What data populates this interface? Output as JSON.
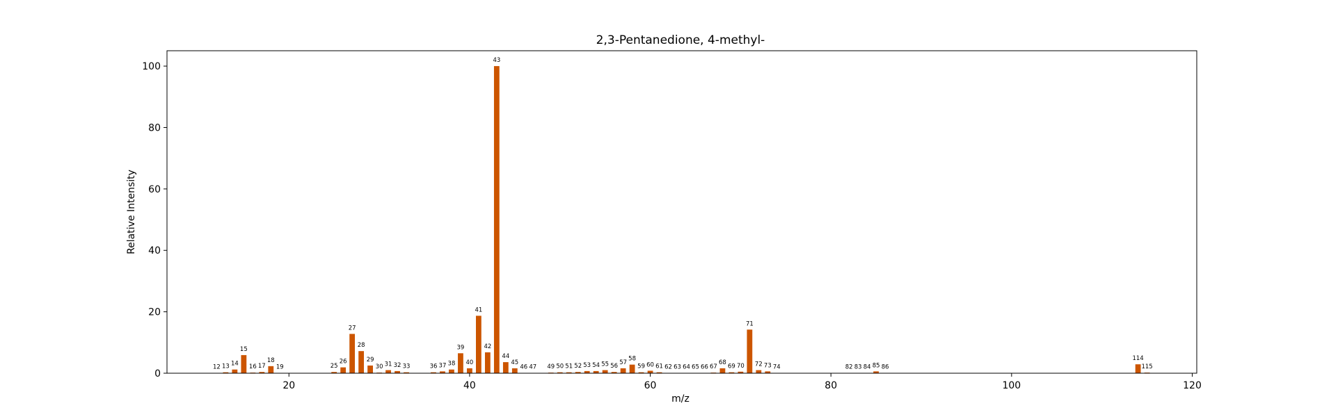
{
  "chart_data": {
    "type": "bar",
    "title": "2,3-Pentanedione, 4-methyl-",
    "xlabel": "m/z",
    "ylabel": "Relative Intensity",
    "xlim": [
      6.5,
      120.5
    ],
    "ylim": [
      0,
      105
    ],
    "xticks": [
      20,
      40,
      60,
      80,
      100,
      120
    ],
    "yticks": [
      0,
      20,
      40,
      60,
      80,
      100
    ],
    "bar_color": "#cc5500",
    "grid": false,
    "legend": "none",
    "x": [
      12,
      13,
      14,
      15,
      16,
      17,
      18,
      19,
      25,
      26,
      27,
      28,
      29,
      30,
      31,
      32,
      33,
      36,
      37,
      38,
      39,
      40,
      41,
      42,
      43,
      44,
      45,
      46,
      47,
      49,
      50,
      51,
      52,
      53,
      54,
      55,
      56,
      57,
      58,
      59,
      60,
      61,
      62,
      63,
      64,
      65,
      66,
      67,
      68,
      69,
      70,
      71,
      72,
      73,
      74,
      82,
      83,
      84,
      85,
      86,
      114,
      115
    ],
    "values": [
      0.1,
      0.3,
      1.2,
      5.9,
      0.2,
      0.4,
      2.3,
      0.1,
      0.4,
      1.9,
      12.8,
      7.2,
      2.5,
      0.2,
      1.0,
      0.7,
      0.3,
      0.3,
      0.6,
      1.2,
      6.5,
      1.6,
      18.7,
      6.8,
      100,
      3.6,
      1.6,
      0.1,
      0.1,
      0.2,
      0.3,
      0.3,
      0.4,
      0.7,
      0.7,
      1.0,
      0.4,
      1.6,
      2.8,
      0.3,
      0.8,
      0.3,
      0.1,
      0.1,
      0.1,
      0.1,
      0.1,
      0.2,
      1.6,
      0.3,
      0.5,
      14.2,
      1.0,
      0.6,
      0.1,
      0.1,
      0.1,
      0.1,
      0.6,
      0.1,
      2.9,
      0.2
    ]
  }
}
